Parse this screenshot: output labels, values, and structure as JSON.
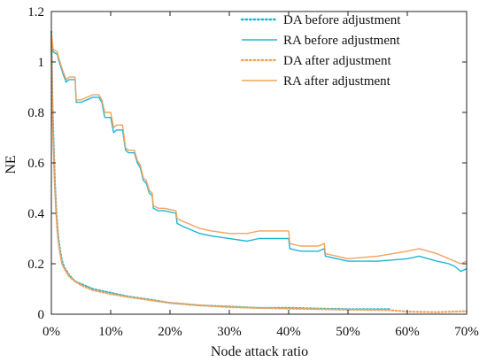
{
  "chart_data": {
    "type": "line",
    "xlabel": "Node attack ratio",
    "ylabel": "NE",
    "xlim": [
      0,
      0.7
    ],
    "ylim": [
      0,
      1.2
    ],
    "x_ticks": [
      {
        "value": 0.0,
        "label": "0%"
      },
      {
        "value": 0.1,
        "label": "10%"
      },
      {
        "value": 0.2,
        "label": "20%"
      },
      {
        "value": 0.3,
        "label": "30%"
      },
      {
        "value": 0.4,
        "label": "40%"
      },
      {
        "value": 0.5,
        "label": "50%"
      },
      {
        "value": 0.6,
        "label": "60%"
      },
      {
        "value": 0.7,
        "label": "70%"
      }
    ],
    "y_ticks": [
      {
        "value": 0.0,
        "label": "0"
      },
      {
        "value": 0.2,
        "label": "0.2"
      },
      {
        "value": 0.4,
        "label": "0.4"
      },
      {
        "value": 0.6,
        "label": "0.6"
      },
      {
        "value": 0.8,
        "label": "0.8"
      },
      {
        "value": 1.0,
        "label": "1"
      },
      {
        "value": 1.2,
        "label": "1.2"
      }
    ],
    "legend_position": "top-right",
    "grid": false,
    "series": [
      {
        "name": "DA before adjustment",
        "color": "#1fb5d6",
        "dash": "dotted",
        "points": [
          [
            0.0,
            1.12
          ],
          [
            0.002,
            0.82
          ],
          [
            0.004,
            0.66
          ],
          [
            0.006,
            0.52
          ],
          [
            0.008,
            0.42
          ],
          [
            0.01,
            0.35
          ],
          [
            0.012,
            0.3
          ],
          [
            0.015,
            0.25
          ],
          [
            0.018,
            0.21
          ],
          [
            0.022,
            0.185
          ],
          [
            0.03,
            0.155
          ],
          [
            0.04,
            0.13
          ],
          [
            0.05,
            0.12
          ],
          [
            0.07,
            0.1
          ],
          [
            0.1,
            0.085
          ],
          [
            0.13,
            0.07
          ],
          [
            0.16,
            0.06
          ],
          [
            0.2,
            0.045
          ],
          [
            0.25,
            0.035
          ],
          [
            0.3,
            0.03
          ],
          [
            0.35,
            0.025
          ],
          [
            0.4,
            0.025
          ],
          [
            0.45,
            0.022
          ],
          [
            0.5,
            0.02
          ],
          [
            0.57,
            0.02
          ]
        ]
      },
      {
        "name": "RA before adjustment",
        "color": "#1fb5d6",
        "dash": "solid",
        "points": [
          [
            0.0,
            1.1
          ],
          [
            0.003,
            1.04
          ],
          [
            0.01,
            1.03
          ],
          [
            0.012,
            1.01
          ],
          [
            0.02,
            0.95
          ],
          [
            0.025,
            0.92
          ],
          [
            0.03,
            0.93
          ],
          [
            0.04,
            0.93
          ],
          [
            0.042,
            0.84
          ],
          [
            0.05,
            0.84
          ],
          [
            0.06,
            0.85
          ],
          [
            0.07,
            0.86
          ],
          [
            0.08,
            0.86
          ],
          [
            0.085,
            0.84
          ],
          [
            0.09,
            0.78
          ],
          [
            0.1,
            0.78
          ],
          [
            0.105,
            0.72
          ],
          [
            0.11,
            0.73
          ],
          [
            0.12,
            0.73
          ],
          [
            0.125,
            0.65
          ],
          [
            0.13,
            0.64
          ],
          [
            0.14,
            0.64
          ],
          [
            0.145,
            0.6
          ],
          [
            0.15,
            0.58
          ],
          [
            0.155,
            0.53
          ],
          [
            0.16,
            0.52
          ],
          [
            0.165,
            0.48
          ],
          [
            0.17,
            0.47
          ],
          [
            0.172,
            0.42
          ],
          [
            0.18,
            0.41
          ],
          [
            0.19,
            0.41
          ],
          [
            0.21,
            0.4
          ],
          [
            0.212,
            0.36
          ],
          [
            0.22,
            0.35
          ],
          [
            0.23,
            0.34
          ],
          [
            0.25,
            0.32
          ],
          [
            0.27,
            0.31
          ],
          [
            0.3,
            0.3
          ],
          [
            0.33,
            0.29
          ],
          [
            0.35,
            0.3
          ],
          [
            0.38,
            0.3
          ],
          [
            0.4,
            0.3
          ],
          [
            0.402,
            0.26
          ],
          [
            0.42,
            0.25
          ],
          [
            0.45,
            0.25
          ],
          [
            0.46,
            0.26
          ],
          [
            0.462,
            0.23
          ],
          [
            0.5,
            0.21
          ],
          [
            0.55,
            0.21
          ],
          [
            0.6,
            0.22
          ],
          [
            0.62,
            0.23
          ],
          [
            0.65,
            0.21
          ],
          [
            0.67,
            0.2
          ],
          [
            0.68,
            0.19
          ],
          [
            0.69,
            0.17
          ],
          [
            0.7,
            0.18
          ]
        ]
      },
      {
        "name": "DA after adjustment",
        "color": "#f2a35c",
        "dash": "dotted",
        "points": [
          [
            0.0,
            1.1
          ],
          [
            0.002,
            0.8
          ],
          [
            0.004,
            0.64
          ],
          [
            0.006,
            0.51
          ],
          [
            0.008,
            0.41
          ],
          [
            0.01,
            0.34
          ],
          [
            0.012,
            0.29
          ],
          [
            0.015,
            0.24
          ],
          [
            0.018,
            0.2
          ],
          [
            0.022,
            0.18
          ],
          [
            0.03,
            0.15
          ],
          [
            0.04,
            0.13
          ],
          [
            0.05,
            0.115
          ],
          [
            0.07,
            0.095
          ],
          [
            0.1,
            0.08
          ],
          [
            0.13,
            0.068
          ],
          [
            0.16,
            0.058
          ],
          [
            0.2,
            0.045
          ],
          [
            0.25,
            0.035
          ],
          [
            0.3,
            0.028
          ],
          [
            0.35,
            0.025
          ],
          [
            0.4,
            0.022
          ],
          [
            0.45,
            0.02
          ],
          [
            0.5,
            0.018
          ],
          [
            0.55,
            0.017
          ],
          [
            0.57,
            0.016
          ],
          [
            0.6,
            0.01
          ],
          [
            0.65,
            0.008
          ],
          [
            0.7,
            0.012
          ]
        ]
      },
      {
        "name": "RA after adjustment",
        "color": "#f2a35c",
        "dash": "solid",
        "points": [
          [
            0.0,
            1.12
          ],
          [
            0.003,
            1.05
          ],
          [
            0.01,
            1.04
          ],
          [
            0.012,
            1.02
          ],
          [
            0.02,
            0.96
          ],
          [
            0.025,
            0.93
          ],
          [
            0.03,
            0.94
          ],
          [
            0.04,
            0.94
          ],
          [
            0.042,
            0.85
          ],
          [
            0.05,
            0.85
          ],
          [
            0.06,
            0.86
          ],
          [
            0.07,
            0.87
          ],
          [
            0.08,
            0.87
          ],
          [
            0.085,
            0.85
          ],
          [
            0.09,
            0.8
          ],
          [
            0.1,
            0.8
          ],
          [
            0.105,
            0.74
          ],
          [
            0.11,
            0.75
          ],
          [
            0.12,
            0.75
          ],
          [
            0.125,
            0.66
          ],
          [
            0.13,
            0.65
          ],
          [
            0.14,
            0.65
          ],
          [
            0.145,
            0.61
          ],
          [
            0.15,
            0.59
          ],
          [
            0.155,
            0.54
          ],
          [
            0.16,
            0.53
          ],
          [
            0.165,
            0.49
          ],
          [
            0.17,
            0.48
          ],
          [
            0.172,
            0.43
          ],
          [
            0.18,
            0.42
          ],
          [
            0.19,
            0.42
          ],
          [
            0.21,
            0.41
          ],
          [
            0.212,
            0.38
          ],
          [
            0.22,
            0.37
          ],
          [
            0.23,
            0.36
          ],
          [
            0.25,
            0.34
          ],
          [
            0.27,
            0.33
          ],
          [
            0.3,
            0.32
          ],
          [
            0.33,
            0.32
          ],
          [
            0.35,
            0.33
          ],
          [
            0.38,
            0.33
          ],
          [
            0.4,
            0.33
          ],
          [
            0.402,
            0.28
          ],
          [
            0.42,
            0.27
          ],
          [
            0.45,
            0.27
          ],
          [
            0.46,
            0.28
          ],
          [
            0.462,
            0.24
          ],
          [
            0.5,
            0.22
          ],
          [
            0.55,
            0.23
          ],
          [
            0.6,
            0.25
          ],
          [
            0.62,
            0.26
          ],
          [
            0.65,
            0.24
          ],
          [
            0.67,
            0.22
          ],
          [
            0.68,
            0.21
          ],
          [
            0.69,
            0.2
          ],
          [
            0.7,
            0.21
          ]
        ]
      }
    ]
  }
}
